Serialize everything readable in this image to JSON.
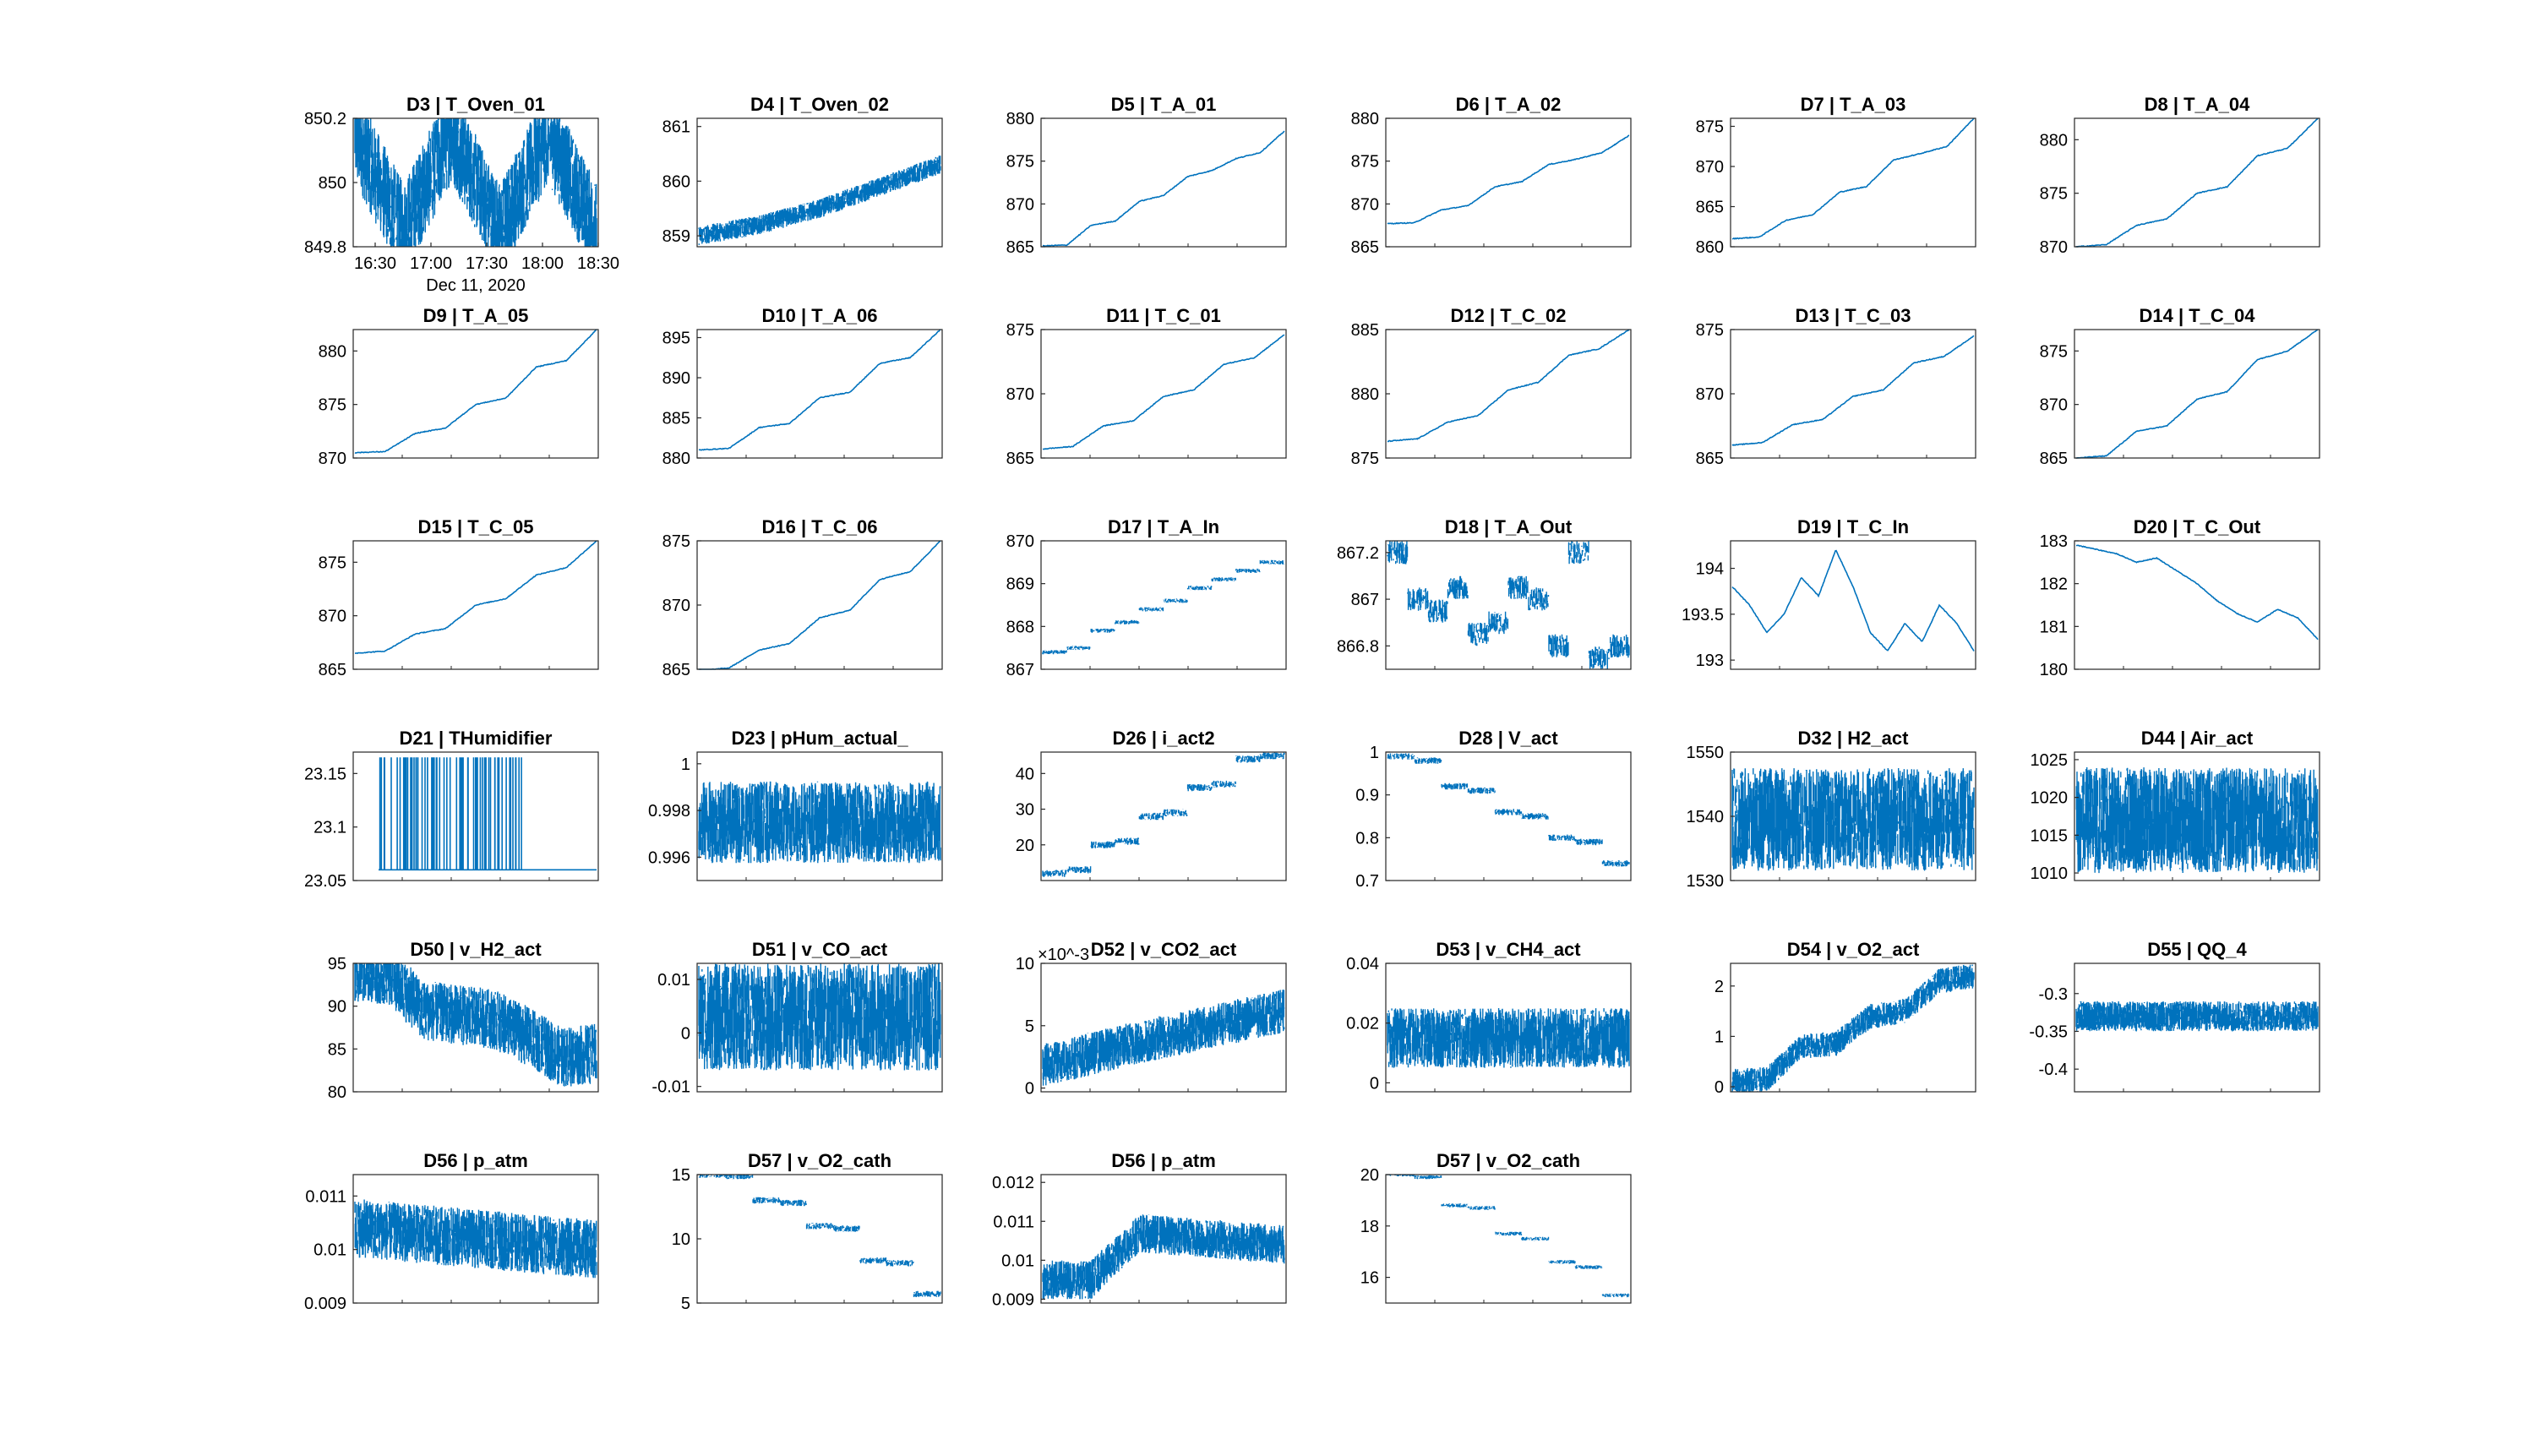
{
  "figure": {
    "line_color": "#0072BD",
    "axes_color": "#262626",
    "background": "#ffffff"
  },
  "chart_data": [
    {
      "title": "D3 | T_Oven_01",
      "type": "line",
      "style": "noisy",
      "yticks": [
        "850.2",
        "850",
        "849.8"
      ],
      "xticks": [
        "16:30",
        "17:00",
        "17:30",
        "18:00",
        "18:30"
      ],
      "xsublabel": "Dec 11, 2020",
      "ylim": [
        849.8,
        850.2
      ],
      "y": [
        850.15,
        849.85,
        850.15,
        849.85,
        850.15,
        849.85
      ],
      "band": 0.3
    },
    {
      "title": "D4 | T_Oven_02",
      "type": "line",
      "style": "band",
      "yticks": [
        "861",
        "860",
        "859"
      ],
      "ylim": [
        858.8,
        861.15
      ],
      "y": [
        859.0,
        859.2,
        859.5,
        859.9,
        860.3
      ],
      "band": 0.35
    },
    {
      "title": "D5 | T_A_01",
      "type": "line",
      "style": "line",
      "yticks": [
        "880",
        "875",
        "870",
        "865"
      ],
      "ylim": [
        865,
        880
      ],
      "y": [
        865.1,
        865.2,
        867.5,
        868.0,
        870.3,
        871.0,
        873.2,
        873.9,
        875.3,
        876.0,
        878.5
      ]
    },
    {
      "title": "D6 | T_A_02",
      "type": "line",
      "style": "line",
      "yticks": [
        "880",
        "875",
        "870",
        "865"
      ],
      "ylim": [
        865,
        880
      ],
      "y": [
        867.7,
        867.8,
        869.3,
        869.8,
        872.0,
        872.6,
        874.6,
        875.2,
        876.0,
        878.0
      ]
    },
    {
      "title": "D7 | T_A_03",
      "type": "line",
      "style": "line",
      "yticks": [
        "875",
        "870",
        "865",
        "860"
      ],
      "ylim": [
        860,
        876
      ],
      "y": [
        861.0,
        861.2,
        863.3,
        864.0,
        866.8,
        867.5,
        870.8,
        871.6,
        872.5,
        876.0
      ]
    },
    {
      "title": "D8 | T_A_04",
      "type": "line",
      "style": "line",
      "yticks": [
        "880",
        "875",
        "870"
      ],
      "ylim": [
        870,
        882
      ],
      "y": [
        870.0,
        870.2,
        872.0,
        872.6,
        875.0,
        875.6,
        878.5,
        879.2,
        882.0
      ]
    },
    {
      "title": "D9 | T_A_05",
      "type": "line",
      "style": "line",
      "yticks": [
        "880",
        "875",
        "870"
      ],
      "ylim": [
        870,
        882
      ],
      "y": [
        870.5,
        870.6,
        872.3,
        872.8,
        875.0,
        875.6,
        878.5,
        879.1,
        882.0
      ]
    },
    {
      "title": "D10 | T_A_06",
      "type": "line",
      "style": "line",
      "yticks": [
        "895",
        "890",
        "885",
        "880"
      ],
      "ylim": [
        880,
        896
      ],
      "y": [
        881.0,
        881.2,
        883.8,
        884.3,
        887.5,
        888.2,
        891.8,
        892.5,
        896.0
      ]
    },
    {
      "title": "D11 | T_C_01",
      "type": "line",
      "style": "line",
      "yticks": [
        "875",
        "870",
        "865"
      ],
      "ylim": [
        865,
        875
      ],
      "y": [
        865.7,
        865.9,
        867.5,
        867.9,
        869.8,
        870.3,
        872.3,
        872.8,
        874.6
      ]
    },
    {
      "title": "D12 | T_C_02",
      "type": "line",
      "style": "line",
      "yticks": [
        "885",
        "880",
        "875"
      ],
      "ylim": [
        875,
        885
      ],
      "y": [
        876.3,
        876.5,
        877.8,
        878.3,
        880.3,
        880.9,
        883.0,
        883.5,
        885.0
      ]
    },
    {
      "title": "D13 | T_C_03",
      "type": "line",
      "style": "line",
      "yticks": [
        "875",
        "870",
        "865"
      ],
      "ylim": [
        865,
        875
      ],
      "y": [
        866.0,
        866.2,
        867.6,
        868.0,
        869.8,
        870.3,
        872.4,
        872.9,
        874.5
      ]
    },
    {
      "title": "D14 | T_C_04",
      "type": "line",
      "style": "line",
      "yticks": [
        "875",
        "870",
        "865"
      ],
      "ylim": [
        865,
        877
      ],
      "y": [
        865.0,
        865.2,
        867.5,
        868.0,
        870.5,
        871.2,
        874.2,
        875.0,
        877.0
      ]
    },
    {
      "title": "D15 | T_C_05",
      "type": "line",
      "style": "line",
      "yticks": [
        "875",
        "870",
        "865"
      ],
      "ylim": [
        865,
        877
      ],
      "y": [
        866.5,
        866.7,
        868.3,
        868.8,
        871.0,
        871.6,
        873.8,
        874.5,
        877.0
      ]
    },
    {
      "title": "D16 | T_C_06",
      "type": "line",
      "style": "line",
      "yticks": [
        "875",
        "870",
        "865"
      ],
      "ylim": [
        865,
        875
      ],
      "y": [
        864.9,
        865.1,
        866.5,
        867.0,
        869.0,
        869.6,
        872.0,
        872.6,
        875.0
      ]
    },
    {
      "title": "D17 | T_A_In",
      "type": "line",
      "style": "steps",
      "yticks": [
        "870",
        "869",
        "868",
        "867"
      ],
      "ylim": [
        867,
        870
      ],
      "y": [
        867.4,
        867.5,
        867.9,
        868.1,
        868.4,
        868.6,
        868.9,
        869.1,
        869.3,
        869.5
      ],
      "band": 0.1
    },
    {
      "title": "D18 | T_A_Out",
      "type": "line",
      "style": "steps",
      "yticks": [
        "867.2",
        "867",
        "866.8"
      ],
      "ylim": [
        866.7,
        867.25
      ],
      "y": [
        867.2,
        867.0,
        866.95,
        867.05,
        866.85,
        866.9,
        867.05,
        867.0,
        866.8,
        867.2,
        866.75,
        866.8
      ],
      "band": 0.1
    },
    {
      "title": "D19 | T_C_In",
      "type": "line",
      "style": "line",
      "yticks": [
        "194",
        "193.5",
        "193"
      ],
      "ylim": [
        192.9,
        194.3
      ],
      "y": [
        193.8,
        193.6,
        193.3,
        193.5,
        193.9,
        193.7,
        194.2,
        193.8,
        193.3,
        193.1,
        193.4,
        193.2,
        193.6,
        193.4,
        193.1
      ]
    },
    {
      "title": "D20 | T_C_Out",
      "type": "line",
      "style": "line",
      "yticks": [
        "183",
        "182",
        "181",
        "180"
      ],
      "ylim": [
        180,
        183
      ],
      "y": [
        182.9,
        182.8,
        182.7,
        182.5,
        182.6,
        182.3,
        182.0,
        181.6,
        181.3,
        181.1,
        181.4,
        181.2,
        180.7
      ]
    },
    {
      "title": "D21 | THumidifier",
      "type": "line",
      "style": "spikes",
      "yticks": [
        "23.15",
        "23.1",
        "23.05"
      ],
      "ylim": [
        23.05,
        23.17
      ],
      "y": [
        23.06,
        23.06
      ],
      "band": 0.105
    },
    {
      "title": "D23 | pHum_actual_",
      "type": "line",
      "style": "noisy",
      "yticks": [
        "1",
        "0.998",
        "0.996"
      ],
      "ylim": [
        0.995,
        1.0005
      ],
      "y": [
        0.9975,
        0.9975
      ],
      "band": 0.0035
    },
    {
      "title": "D26 | i_act2",
      "type": "line",
      "style": "steps",
      "yticks": [
        "40",
        "30",
        "20"
      ],
      "ylim": [
        10,
        46
      ],
      "y": [
        12,
        13,
        20,
        21,
        28,
        29,
        36,
        37,
        44,
        45
      ],
      "band": 2
    },
    {
      "title": "D28 | V_act",
      "type": "line",
      "style": "steps",
      "yticks": [
        "1",
        "0.9",
        "0.8",
        "0.7"
      ],
      "ylim": [
        0.7,
        1.0
      ],
      "y": [
        0.99,
        0.98,
        0.92,
        0.91,
        0.86,
        0.85,
        0.8,
        0.79,
        0.74
      ],
      "band": 0.015
    },
    {
      "title": "D32 | H2_act",
      "type": "line",
      "style": "noisy",
      "yticks": [
        "1550",
        "1540",
        "1530"
      ],
      "ylim": [
        1530,
        1550
      ],
      "y": [
        1539.5,
        1539.5
      ],
      "band": 16
    },
    {
      "title": "D44 | Air_act",
      "type": "line",
      "style": "noisy",
      "yticks": [
        "1025",
        "1020",
        "1015",
        "1010"
      ],
      "ylim": [
        1009,
        1026
      ],
      "y": [
        1017,
        1017
      ],
      "band": 14
    },
    {
      "title": "D50 | v_H2_act",
      "type": "line",
      "style": "band",
      "yticks": [
        "95",
        "90",
        "85",
        "80"
      ],
      "ylim": [
        80,
        95
      ],
      "y": [
        94,
        93.5,
        89.5,
        89,
        88.5,
        86.5,
        84,
        84.5
      ],
      "band": 7
    },
    {
      "title": "D51 | v_CO_act",
      "type": "line",
      "style": "noisy",
      "yticks": [
        "0.01",
        "0",
        "-0.01"
      ],
      "ylim": [
        -0.011,
        0.013
      ],
      "y": [
        0.003,
        0.003
      ],
      "band": 0.02
    },
    {
      "title": "D52 | v_CO2_act",
      "type": "line",
      "style": "band",
      "yticks": [
        "10",
        "5",
        "0"
      ],
      "ylim": [
        -0.3,
        10
      ],
      "y": [
        1.8,
        2.6,
        3.4,
        4.1,
        4.8,
        5.5,
        6.2
      ],
      "band": 3.5,
      "exponent": "×10^-3"
    },
    {
      "title": "D53 | v_CH4_act",
      "type": "line",
      "style": "noisy",
      "yticks": [
        "0.04",
        "0.02",
        "0"
      ],
      "ylim": [
        -0.003,
        0.04
      ],
      "y": [
        0.015,
        0.015
      ],
      "band": 0.02
    },
    {
      "title": "D54 | v_O2_act",
      "type": "line",
      "style": "band",
      "yticks": [
        "2",
        "1",
        "0"
      ],
      "ylim": [
        -0.1,
        2.45
      ],
      "y": [
        0.1,
        0.15,
        0.8,
        0.85,
        1.4,
        1.5,
        2.1,
        2.2
      ],
      "band": 0.5
    },
    {
      "title": "D55 | QQ_4",
      "type": "line",
      "style": "noisy",
      "yticks": [
        "-0.3",
        "-0.35",
        "-0.4"
      ],
      "ylim": [
        -0.43,
        -0.26
      ],
      "y": [
        -0.33,
        -0.33
      ],
      "band": 0.04
    },
    {
      "title": "D56 | p_atm",
      "type": "line",
      "style": "noisy",
      "yticks": [
        "0.011",
        "0.01",
        "0.009"
      ],
      "ylim": [
        0.009,
        0.0114
      ],
      "y": [
        0.0104,
        0.01
      ],
      "band": 0.0011
    },
    {
      "title": "D57 | v_O2_cath",
      "type": "line",
      "style": "steps",
      "yticks": [
        "15",
        "10",
        "5"
      ],
      "ylim": [
        5,
        15
      ],
      "y": [
        15.0,
        14.9,
        13.0,
        12.8,
        11.0,
        10.8,
        8.3,
        8.1,
        5.7
      ],
      "band": 0.5
    },
    {
      "title": "D56 | p_atm",
      "type": "line",
      "style": "noisy",
      "yticks": [
        "0.012",
        "0.011",
        "0.01",
        "0.009"
      ],
      "ylim": [
        0.0089,
        0.0122
      ],
      "y": [
        0.0095,
        0.0095,
        0.0107,
        0.0106,
        0.0105,
        0.0104
      ],
      "band": 0.001
    },
    {
      "title": "D57 | v_O2_cath",
      "type": "line",
      "style": "steps",
      "yticks": [
        "20",
        "18",
        "16"
      ],
      "ylim": [
        15,
        20
      ],
      "y": [
        20.0,
        19.9,
        18.8,
        18.7,
        17.7,
        17.5,
        16.6,
        16.4,
        15.3
      ],
      "band": 0.15
    }
  ]
}
